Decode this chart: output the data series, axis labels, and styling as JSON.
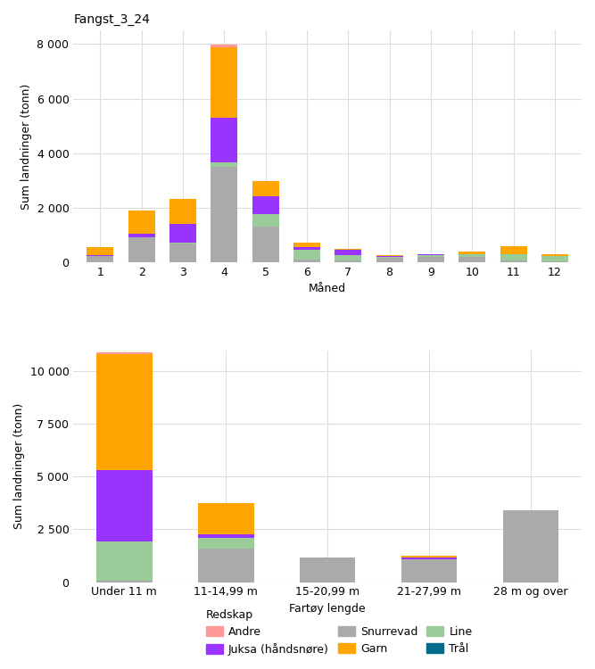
{
  "title": "Fangst_3_24",
  "ylabel": "Sum landninger (tonn)",
  "xlabel1": "Måned",
  "xlabel2": "Fartøy lengde",
  "colors": {
    "Andre": "#FF9999",
    "Garn": "#FFA500",
    "Juksa": "#9933FF",
    "Line": "#99CC99",
    "Snurrevad": "#AAAAAA",
    "Tral": "#006B8A"
  },
  "month_data": {
    "months": [
      1,
      2,
      3,
      4,
      5,
      6,
      7,
      8,
      9,
      10,
      11,
      12
    ],
    "Snurrevad": [
      220,
      900,
      700,
      3500,
      1300,
      90,
      55,
      160,
      200,
      200,
      80,
      30
    ],
    "Line": [
      20,
      30,
      30,
      150,
      480,
      380,
      190,
      50,
      50,
      80,
      200,
      190
    ],
    "Juksa": [
      20,
      120,
      680,
      1650,
      650,
      80,
      200,
      20,
      30,
      30,
      30,
      20
    ],
    "Garn": [
      280,
      860,
      900,
      2600,
      550,
      160,
      50,
      30,
      30,
      90,
      290,
      45
    ],
    "Andre": [
      0,
      0,
      0,
      70,
      0,
      0,
      0,
      0,
      0,
      0,
      0,
      0
    ]
  },
  "length_data": {
    "categories": [
      "Under 11 m",
      "11-14,99 m",
      "15-20,99 m",
      "21-27,99 m",
      "28 m og over"
    ],
    "Snurrevad": [
      80,
      1600,
      1150,
      1100,
      3400
    ],
    "Line": [
      1850,
      500,
      0,
      0,
      0
    ],
    "Juksa": [
      3400,
      150,
      30,
      80,
      0
    ],
    "Garn": [
      5500,
      1500,
      0,
      50,
      0
    ],
    "Andre": [
      80,
      0,
      0,
      0,
      0
    ]
  },
  "fig_bg": "#FFFFFF",
  "plot_bg": "#FFFFFF",
  "grid_color": "#DDDDDD"
}
